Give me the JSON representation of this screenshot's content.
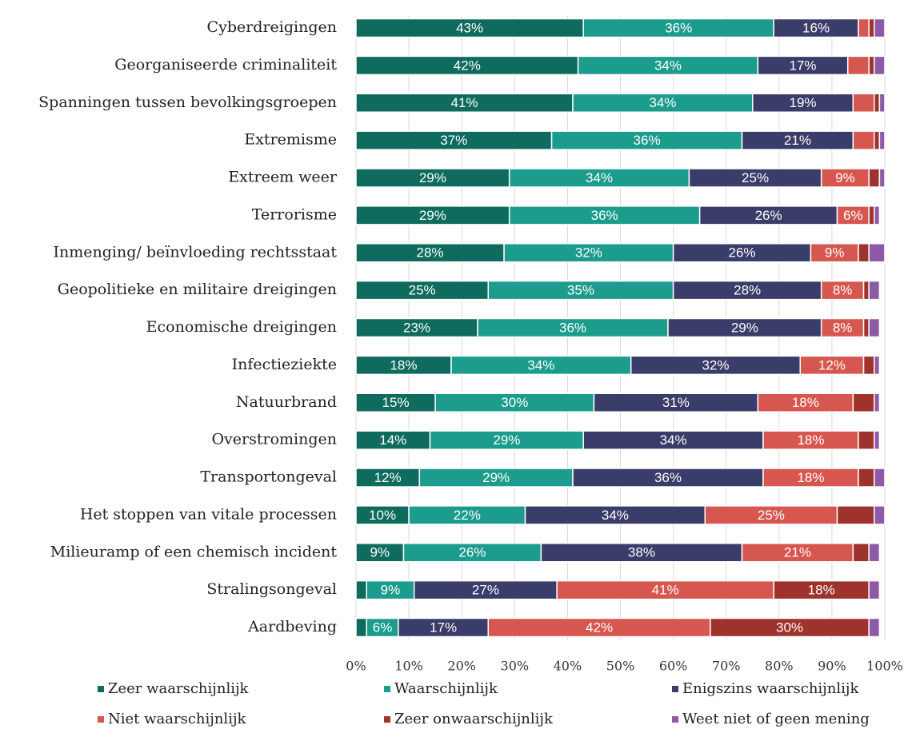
{
  "chart_data": {
    "type": "stacked-barh",
    "categories": [
      "Cyberdreigingen",
      "Georganiseerde criminaliteit",
      "Spanningen tussen bevolkingsgroepen",
      "Extremisme",
      "Extreem weer",
      "Terrorisme",
      "Inmenging/ beïnvloeding rechtsstaat",
      "Geopolitieke en militaire dreigingen",
      "Economische dreigingen",
      "Infectieziekte",
      "Natuurbrand",
      "Overstromingen",
      "Transportongeval",
      "Het stoppen van vitale processen",
      "Milieuramp of een chemisch incident",
      "Stralingsongeval",
      "Aardbeving"
    ],
    "series": [
      {
        "name": "Zeer waarschijnlijk",
        "color": "#0f6b5e",
        "values": [
          43,
          42,
          41,
          37,
          29,
          29,
          28,
          25,
          23,
          18,
          15,
          14,
          12,
          10,
          9,
          2,
          2
        ],
        "value_labels": [
          "43%",
          "42%",
          "41%",
          "37%",
          "29%",
          "29%",
          "28%",
          "25%",
          "23%",
          "18%",
          "15%",
          "14%",
          "12%",
          "10%",
          "9%",
          null,
          null
        ]
      },
      {
        "name": "Waarschijnlijk",
        "color": "#1c9c8c",
        "values": [
          36,
          34,
          34,
          36,
          34,
          36,
          32,
          35,
          36,
          34,
          30,
          29,
          29,
          22,
          26,
          9,
          6
        ],
        "value_labels": [
          "36%",
          "34%",
          "34%",
          "36%",
          "34%",
          "36%",
          "32%",
          "35%",
          "36%",
          "34%",
          "30%",
          "29%",
          "29%",
          "22%",
          "26%",
          "9%",
          "6%"
        ]
      },
      {
        "name": "Enigszins waarschijnlijk",
        "color": "#3a3c69",
        "values": [
          16,
          17,
          19,
          21,
          25,
          26,
          26,
          28,
          29,
          32,
          31,
          34,
          36,
          34,
          38,
          27,
          17
        ],
        "value_labels": [
          "16%",
          "17%",
          "19%",
          "21%",
          "25%",
          "26%",
          "26%",
          "28%",
          "29%",
          "32%",
          "31%",
          "34%",
          "36%",
          "34%",
          "38%",
          "27%",
          "17%"
        ]
      },
      {
        "name": "Niet waarschijnlijk",
        "color": "#d6574f",
        "values": [
          2,
          4,
          4,
          4,
          9,
          6,
          9,
          8,
          8,
          12,
          18,
          18,
          18,
          25,
          21,
          41,
          42
        ],
        "value_labels": [
          null,
          null,
          null,
          null,
          "9%",
          "6%",
          "9%",
          "8%",
          "8%",
          "12%",
          "18%",
          "18%",
          "18%",
          "25%",
          "21%",
          "41%",
          "42%"
        ]
      },
      {
        "name": "Zeer onwaarschijnlijk",
        "color": "#9e322c",
        "values": [
          1,
          1,
          1,
          1,
          2,
          1,
          2,
          1,
          1,
          2,
          4,
          3,
          3,
          7,
          3,
          18,
          30
        ],
        "value_labels": [
          null,
          null,
          null,
          null,
          null,
          null,
          null,
          null,
          null,
          null,
          null,
          null,
          null,
          null,
          null,
          "18%",
          "30%"
        ]
      },
      {
        "name": "Weet niet of geen mening",
        "color": "#8c5aa6",
        "values": [
          2,
          2,
          1,
          1,
          1,
          1,
          3,
          2,
          2,
          1,
          1,
          1,
          2,
          2,
          2,
          2,
          2
        ],
        "value_labels": [
          null,
          null,
          null,
          null,
          null,
          null,
          null,
          null,
          null,
          null,
          null,
          null,
          null,
          null,
          null,
          null,
          null
        ]
      }
    ],
    "xlim": [
      0,
      100
    ],
    "xticks": [
      {
        "value": 0,
        "label": "0%"
      },
      {
        "value": 10,
        "label": "10%"
      },
      {
        "value": 20,
        "label": "20%"
      },
      {
        "value": 30,
        "label": "30%"
      },
      {
        "value": 40,
        "label": "40%"
      },
      {
        "value": 50,
        "label": "50%"
      },
      {
        "value": 60,
        "label": "60%"
      },
      {
        "value": 70,
        "label": "70%"
      },
      {
        "value": 80,
        "label": "80%"
      },
      {
        "value": 90,
        "label": "90%"
      },
      {
        "value": 100,
        "label": "100%"
      }
    ],
    "grid": true,
    "legend": "bottom"
  }
}
